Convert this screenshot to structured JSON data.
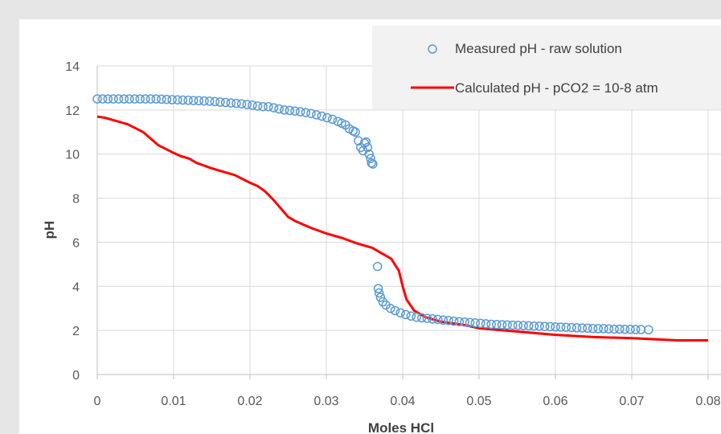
{
  "chart_data": {
    "type": "scatter",
    "xlabel": "Moles HCl",
    "ylabel": "pH",
    "xlim": [
      0,
      0.08
    ],
    "ylim": [
      0,
      14
    ],
    "x_ticks": [
      "0",
      "0.01",
      "0.02",
      "0.03",
      "0.04",
      "0.05",
      "0.06",
      "0.07",
      "0.08"
    ],
    "y_ticks": [
      "0",
      "2",
      "4",
      "6",
      "8",
      "10",
      "12",
      "14"
    ],
    "grid": true,
    "legend_position": "top-right",
    "series": [
      {
        "name": "Measured pH - raw solution",
        "kind": "markers",
        "color": "#5b9bd5",
        "points": [
          [
            0.0,
            12.5
          ],
          [
            0.0007,
            12.5
          ],
          [
            0.0014,
            12.5
          ],
          [
            0.0021,
            12.5
          ],
          [
            0.0028,
            12.5
          ],
          [
            0.0035,
            12.5
          ],
          [
            0.0042,
            12.5
          ],
          [
            0.0049,
            12.5
          ],
          [
            0.0056,
            12.5
          ],
          [
            0.0063,
            12.5
          ],
          [
            0.007,
            12.5
          ],
          [
            0.0077,
            12.5
          ],
          [
            0.0084,
            12.49
          ],
          [
            0.0091,
            12.48
          ],
          [
            0.0098,
            12.47
          ],
          [
            0.0105,
            12.46
          ],
          [
            0.0112,
            12.45
          ],
          [
            0.0119,
            12.44
          ],
          [
            0.0126,
            12.43
          ],
          [
            0.0133,
            12.42
          ],
          [
            0.014,
            12.41
          ],
          [
            0.0147,
            12.4
          ],
          [
            0.0154,
            12.38
          ],
          [
            0.0161,
            12.36
          ],
          [
            0.0168,
            12.34
          ],
          [
            0.0175,
            12.32
          ],
          [
            0.0182,
            12.3
          ],
          [
            0.0189,
            12.28
          ],
          [
            0.0196,
            12.25
          ],
          [
            0.0203,
            12.22
          ],
          [
            0.021,
            12.18
          ],
          [
            0.0217,
            12.15
          ],
          [
            0.0224,
            12.15
          ],
          [
            0.0231,
            12.1
          ],
          [
            0.0238,
            12.05
          ],
          [
            0.0245,
            12.0
          ],
          [
            0.0252,
            11.98
          ],
          [
            0.0259,
            11.95
          ],
          [
            0.0266,
            11.92
          ],
          [
            0.0273,
            11.88
          ],
          [
            0.028,
            11.84
          ],
          [
            0.0287,
            11.78
          ],
          [
            0.0294,
            11.72
          ],
          [
            0.0301,
            11.65
          ],
          [
            0.0308,
            11.58
          ],
          [
            0.0315,
            11.48
          ],
          [
            0.032,
            11.4
          ],
          [
            0.0325,
            11.32
          ],
          [
            0.033,
            11.15
          ],
          [
            0.0335,
            11.05
          ],
          [
            0.0338,
            11.0
          ],
          [
            0.0342,
            10.6
          ],
          [
            0.0345,
            10.3
          ],
          [
            0.0348,
            10.15
          ],
          [
            0.035,
            10.5
          ],
          [
            0.0352,
            10.55
          ],
          [
            0.0354,
            10.3
          ],
          [
            0.0356,
            10.0
          ],
          [
            0.0358,
            9.8
          ],
          [
            0.0359,
            9.6
          ],
          [
            0.0361,
            9.55
          ],
          [
            0.0367,
            4.9
          ],
          [
            0.0368,
            3.9
          ],
          [
            0.0369,
            3.7
          ],
          [
            0.0371,
            3.5
          ],
          [
            0.0374,
            3.3
          ],
          [
            0.0378,
            3.15
          ],
          [
            0.0384,
            3.0
          ],
          [
            0.039,
            2.9
          ],
          [
            0.0397,
            2.8
          ],
          [
            0.0404,
            2.72
          ],
          [
            0.0411,
            2.65
          ],
          [
            0.0418,
            2.6
          ],
          [
            0.0425,
            2.57
          ],
          [
            0.0432,
            2.55
          ],
          [
            0.0439,
            2.52
          ],
          [
            0.0446,
            2.5
          ],
          [
            0.0453,
            2.47
          ],
          [
            0.046,
            2.45
          ],
          [
            0.0467,
            2.42
          ],
          [
            0.0474,
            2.4
          ],
          [
            0.0481,
            2.38
          ],
          [
            0.0488,
            2.36
          ],
          [
            0.0495,
            2.34
          ],
          [
            0.0502,
            2.32
          ],
          [
            0.0509,
            2.3
          ],
          [
            0.0516,
            2.28
          ],
          [
            0.0523,
            2.27
          ],
          [
            0.053,
            2.26
          ],
          [
            0.0537,
            2.25
          ],
          [
            0.0544,
            2.24
          ],
          [
            0.0551,
            2.23
          ],
          [
            0.0558,
            2.22
          ],
          [
            0.0565,
            2.21
          ],
          [
            0.0572,
            2.2
          ],
          [
            0.0579,
            2.19
          ],
          [
            0.0586,
            2.18
          ],
          [
            0.0593,
            2.17
          ],
          [
            0.06,
            2.16
          ],
          [
            0.0607,
            2.15
          ],
          [
            0.0614,
            2.14
          ],
          [
            0.0621,
            2.13
          ],
          [
            0.0628,
            2.12
          ],
          [
            0.0635,
            2.11
          ],
          [
            0.0642,
            2.1
          ],
          [
            0.0649,
            2.09
          ],
          [
            0.0656,
            2.08
          ],
          [
            0.0663,
            2.08
          ],
          [
            0.067,
            2.07
          ],
          [
            0.0677,
            2.06
          ],
          [
            0.0684,
            2.06
          ],
          [
            0.0691,
            2.05
          ],
          [
            0.0698,
            2.05
          ],
          [
            0.0705,
            2.04
          ],
          [
            0.0712,
            2.04
          ],
          [
            0.0722,
            2.03
          ]
        ]
      },
      {
        "name": "Calculated pH - pCO2 = 10-8 atm",
        "kind": "line",
        "color": "#ff0000",
        "points": [
          [
            0.0,
            11.7
          ],
          [
            0.001,
            11.65
          ],
          [
            0.002,
            11.55
          ],
          [
            0.004,
            11.35
          ],
          [
            0.006,
            11.0
          ],
          [
            0.008,
            10.4
          ],
          [
            0.01,
            10.05
          ],
          [
            0.011,
            9.9
          ],
          [
            0.012,
            9.8
          ],
          [
            0.013,
            9.6
          ],
          [
            0.015,
            9.35
          ],
          [
            0.016,
            9.25
          ],
          [
            0.018,
            9.05
          ],
          [
            0.02,
            8.7
          ],
          [
            0.021,
            8.55
          ],
          [
            0.022,
            8.3
          ],
          [
            0.023,
            7.95
          ],
          [
            0.024,
            7.55
          ],
          [
            0.025,
            7.15
          ],
          [
            0.026,
            6.95
          ],
          [
            0.028,
            6.65
          ],
          [
            0.03,
            6.4
          ],
          [
            0.032,
            6.2
          ],
          [
            0.034,
            5.95
          ],
          [
            0.036,
            5.75
          ],
          [
            0.037,
            5.55
          ],
          [
            0.0385,
            5.25
          ],
          [
            0.0395,
            4.7
          ],
          [
            0.04,
            4.0
          ],
          [
            0.0405,
            3.4
          ],
          [
            0.0415,
            2.9
          ],
          [
            0.043,
            2.6
          ],
          [
            0.045,
            2.4
          ],
          [
            0.048,
            2.25
          ],
          [
            0.05,
            2.1
          ],
          [
            0.055,
            1.95
          ],
          [
            0.06,
            1.8
          ],
          [
            0.065,
            1.7
          ],
          [
            0.07,
            1.65
          ],
          [
            0.073,
            1.6
          ],
          [
            0.076,
            1.55
          ],
          [
            0.08,
            1.55
          ]
        ]
      }
    ]
  }
}
